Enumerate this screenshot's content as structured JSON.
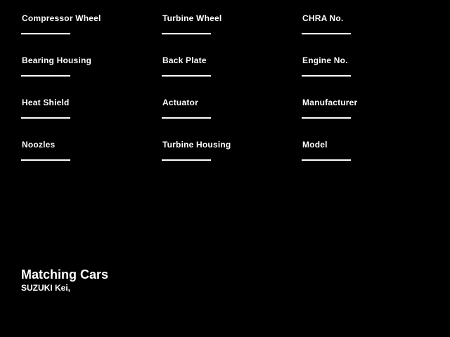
{
  "page": {
    "background_color": "#000000",
    "text_color": "#ffffff"
  },
  "fields": [
    {
      "label": "Compressor Wheel",
      "value": ""
    },
    {
      "label": "Turbine Wheel",
      "value": ""
    },
    {
      "label": "CHRA No.",
      "value": ""
    },
    {
      "label": "Bearing Housing",
      "value": ""
    },
    {
      "label": "Back Plate",
      "value": ""
    },
    {
      "label": "Engine No.",
      "value": ""
    },
    {
      "label": "Heat Shield",
      "value": ""
    },
    {
      "label": "Actuator",
      "value": ""
    },
    {
      "label": "Manufacturer",
      "value": ""
    },
    {
      "label": "Noozles",
      "value": ""
    },
    {
      "label": "Turbine Housing",
      "value": ""
    },
    {
      "label": "Model",
      "value": ""
    }
  ],
  "matching_cars": {
    "heading": "Matching Cars",
    "cars_text": "SUZUKI Kei,"
  }
}
